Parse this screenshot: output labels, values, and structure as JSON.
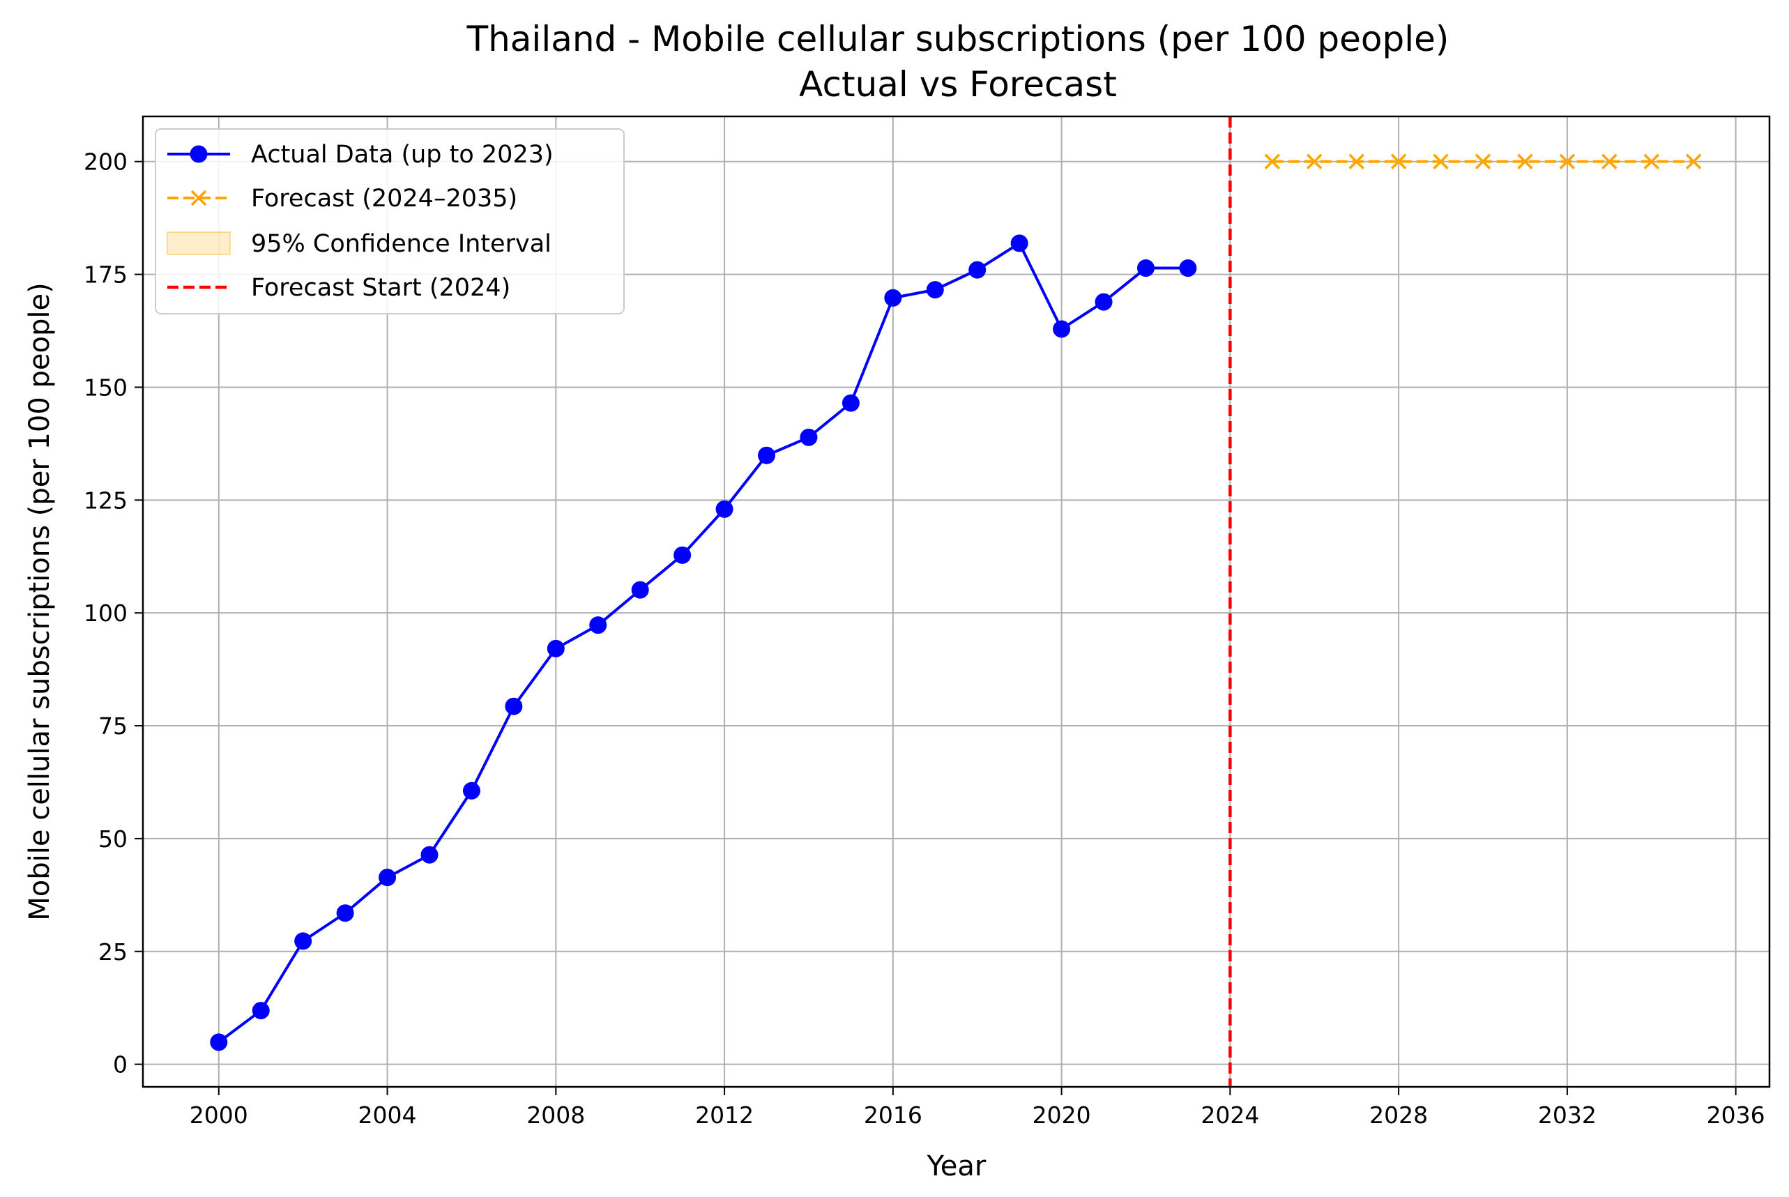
{
  "chart_data": {
    "type": "line",
    "title": "Thailand - Mobile cellular subscriptions (per 100 people)",
    "subtitle": "Actual vs Forecast",
    "xlabel": "Year",
    "ylabel": "Mobile cellular subscriptions (per 100 people)",
    "xlim": [
      1998.2,
      2036.8
    ],
    "ylim": [
      -5,
      210
    ],
    "xticks": [
      2000,
      2004,
      2008,
      2012,
      2016,
      2020,
      2024,
      2028,
      2032,
      2036
    ],
    "yticks": [
      0,
      25,
      50,
      75,
      100,
      125,
      150,
      175,
      200
    ],
    "grid": true,
    "legend_position": "top-left",
    "series": [
      {
        "name": "Actual Data (up to 2023)",
        "style": "solid-line-circle-markers",
        "color": "#0000ff",
        "x": [
          2000,
          2001,
          2002,
          2003,
          2004,
          2005,
          2006,
          2007,
          2008,
          2009,
          2010,
          2011,
          2012,
          2013,
          2014,
          2015,
          2016,
          2017,
          2018,
          2019,
          2020,
          2021,
          2022,
          2023
        ],
        "y": [
          4.9,
          11.9,
          27.3,
          33.5,
          41.4,
          46.4,
          60.6,
          79.3,
          92.1,
          97.3,
          105.1,
          112.8,
          123.0,
          134.9,
          138.9,
          146.5,
          169.8,
          171.6,
          176.0,
          181.9,
          162.9,
          168.9,
          176.4,
          176.4
        ]
      },
      {
        "name": "Forecast (2024–2035)",
        "style": "dashed-line-x-markers",
        "color": "#ffa500",
        "x": [
          2025,
          2026,
          2027,
          2028,
          2029,
          2030,
          2031,
          2032,
          2033,
          2034,
          2035
        ],
        "y": [
          200,
          200,
          200,
          200,
          200,
          200,
          200,
          200,
          200,
          200,
          200
        ]
      },
      {
        "name": "95% Confidence Interval",
        "style": "band",
        "color": "#ffa500",
        "x": [
          2025,
          2026,
          2027,
          2028,
          2029,
          2030,
          2031,
          2032,
          2033,
          2034,
          2035
        ],
        "lower": [
          200,
          200,
          200,
          200,
          200,
          200,
          200,
          200,
          200,
          200,
          200
        ],
        "upper": [
          200,
          200,
          200,
          200,
          200,
          200,
          200,
          200,
          200,
          200,
          200
        ]
      },
      {
        "name": "Forecast Start (2024)",
        "style": "vertical-dashed-line",
        "color": "#ff0000",
        "x": 2024
      }
    ]
  }
}
